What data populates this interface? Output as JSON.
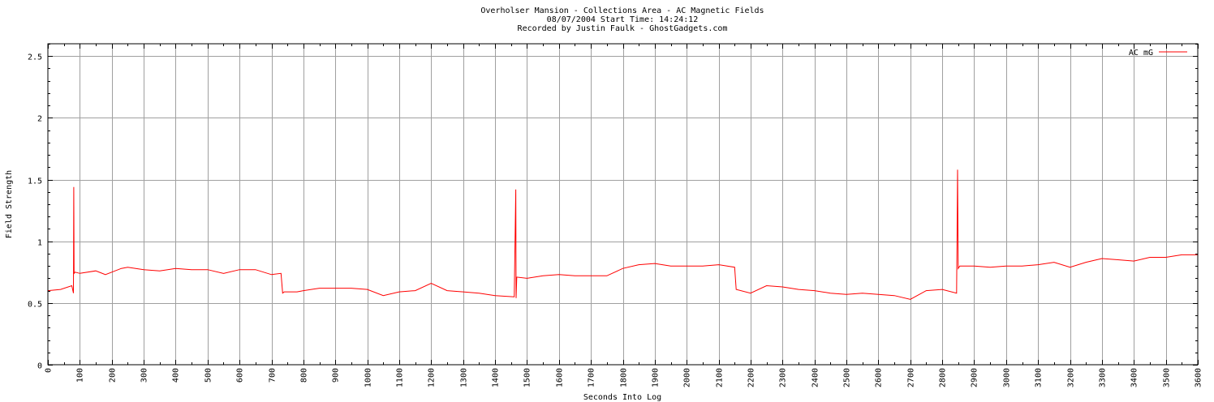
{
  "chart_data": {
    "type": "line",
    "title": "Overholser Mansion - Collections Area - AC Magnetic Fields",
    "subtitle_lines": [
      "08/07/2004  Start Time: 14:24:12",
      "Recorded by Justin Faulk - GhostGadgets.com"
    ],
    "xlabel": "Seconds Into Log",
    "ylabel": "Field Strength",
    "xlim": [
      0,
      3600
    ],
    "ylim": [
      0,
      2.6
    ],
    "xticks": [
      "0",
      "100",
      "200",
      "300",
      "400",
      "500",
      "600",
      "700",
      "800",
      "900",
      "1000",
      "1100",
      "1200",
      "1300",
      "1400",
      "1500",
      "1600",
      "1700",
      "1800",
      "1900",
      "2000",
      "2100",
      "2200",
      "2300",
      "2400",
      "2500",
      "2600",
      "2700",
      "2800",
      "2900",
      "3000",
      "3100",
      "3200",
      "3300",
      "3400",
      "3500",
      "3600"
    ],
    "yticks": [
      "0",
      "0.5",
      "1",
      "1.5",
      "2",
      "2.5"
    ],
    "grid": true,
    "legend_position": "top-right",
    "series_color": "#ff0000",
    "series": [
      {
        "name": "AC mG",
        "x": [
          0,
          40,
          75,
          80,
          81,
          82,
          85,
          100,
          150,
          180,
          200,
          230,
          250,
          300,
          350,
          400,
          450,
          500,
          550,
          600,
          650,
          700,
          730,
          735,
          740,
          780,
          800,
          850,
          900,
          950,
          1000,
          1050,
          1100,
          1150,
          1200,
          1250,
          1300,
          1350,
          1400,
          1460,
          1465,
          1466,
          1468,
          1500,
          1550,
          1600,
          1650,
          1700,
          1750,
          1800,
          1850,
          1900,
          1950,
          2000,
          2050,
          2100,
          2150,
          2155,
          2200,
          2250,
          2300,
          2350,
          2400,
          2450,
          2500,
          2550,
          2600,
          2650,
          2700,
          2750,
          2800,
          2845,
          2848,
          2850,
          2855,
          2900,
          2950,
          3000,
          3050,
          3100,
          3150,
          3200,
          3250,
          3300,
          3350,
          3400,
          3450,
          3500,
          3550,
          3600
        ],
        "y": [
          0.6,
          0.61,
          0.64,
          0.58,
          1.44,
          0.74,
          0.75,
          0.74,
          0.76,
          0.73,
          0.75,
          0.78,
          0.79,
          0.77,
          0.76,
          0.78,
          0.77,
          0.77,
          0.74,
          0.77,
          0.77,
          0.73,
          0.74,
          0.58,
          0.59,
          0.59,
          0.6,
          0.62,
          0.62,
          0.62,
          0.61,
          0.56,
          0.59,
          0.6,
          0.66,
          0.6,
          0.59,
          0.58,
          0.56,
          0.55,
          1.42,
          0.54,
          0.71,
          0.7,
          0.72,
          0.73,
          0.72,
          0.72,
          0.72,
          0.78,
          0.81,
          0.82,
          0.8,
          0.8,
          0.8,
          0.81,
          0.79,
          0.61,
          0.58,
          0.64,
          0.63,
          0.61,
          0.6,
          0.58,
          0.57,
          0.58,
          0.57,
          0.56,
          0.53,
          0.6,
          0.61,
          0.58,
          1.58,
          0.78,
          0.8,
          0.8,
          0.79,
          0.8,
          0.8,
          0.81,
          0.83,
          0.79,
          0.83,
          0.86,
          0.85,
          0.84,
          0.87,
          0.87,
          0.89,
          0.89
        ]
      }
    ]
  }
}
